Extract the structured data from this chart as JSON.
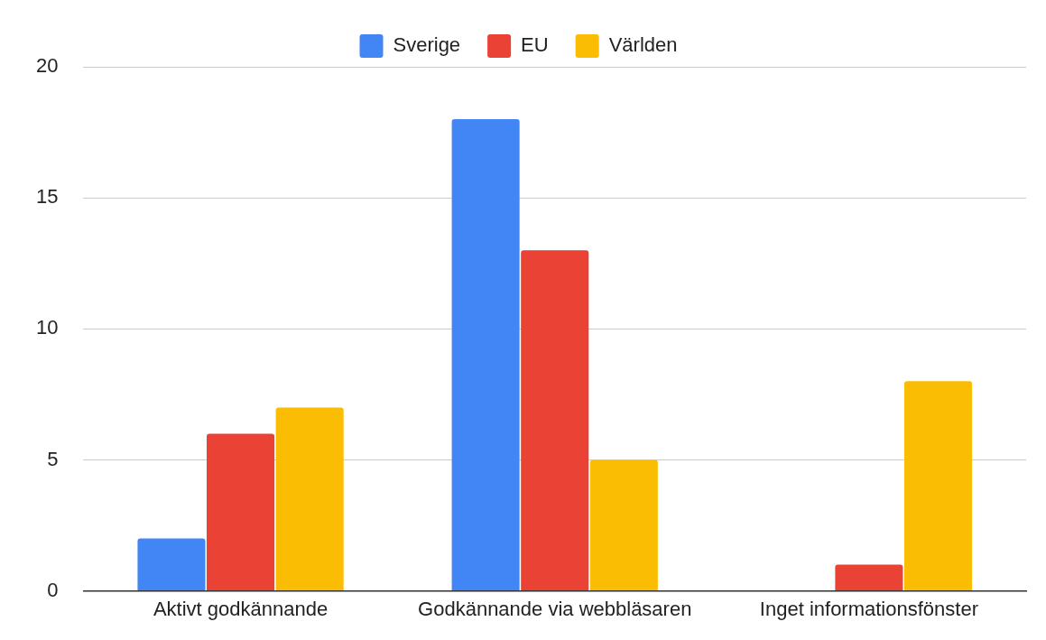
{
  "chart_data": {
    "type": "bar",
    "categories": [
      "Aktivt godkännande",
      "Godkännande via webbläsaren",
      "Inget informationsfönster"
    ],
    "series": [
      {
        "name": "Sverige",
        "color": "#4285f4",
        "values": [
          2,
          18,
          0
        ]
      },
      {
        "name": "EU",
        "color": "#ea4335",
        "values": [
          6,
          13,
          1
        ]
      },
      {
        "name": "Världen",
        "color": "#fbbc04",
        "values": [
          7,
          5,
          8
        ]
      }
    ],
    "ylim": [
      0,
      20
    ],
    "yticks": [
      0,
      5,
      10,
      15,
      20
    ],
    "grid": "y",
    "legend": "top"
  }
}
